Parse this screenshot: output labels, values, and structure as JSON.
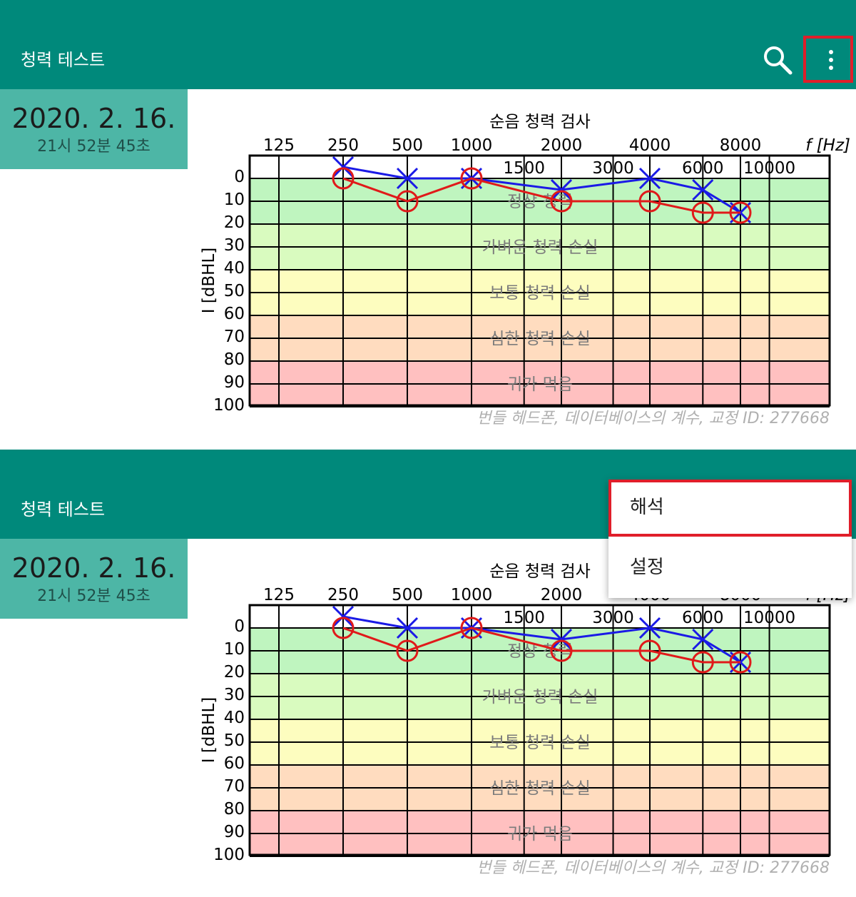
{
  "app": {
    "title": "청력 테스트"
  },
  "record": {
    "date": "2020. 2. 16.",
    "time": "21시 52분 45초"
  },
  "menu": {
    "items": [
      "해석",
      "설정"
    ]
  },
  "chart_data": {
    "type": "line",
    "title": "순음 청력 검사",
    "xlabel": "f [Hz]",
    "ylabel": "I [dBHL]",
    "x_scale": "log",
    "x_ticks_top": [
      125,
      250,
      500,
      1000,
      2000,
      4000,
      8000
    ],
    "x_ticks_mid": [
      1500,
      3000,
      6000,
      10000
    ],
    "y_ticks": [
      0,
      10,
      20,
      30,
      40,
      50,
      60,
      70,
      80,
      90,
      100
    ],
    "ylim": [
      -10,
      100
    ],
    "y_inverted": true,
    "zones": [
      {
        "label": "정상 청력",
        "range": [
          -10,
          20
        ],
        "color": "#bff5bf"
      },
      {
        "label": "가벼운 청력 손실",
        "range": [
          20,
          40
        ],
        "color": "#d9fbbf"
      },
      {
        "label": "보통 청력 손실",
        "range": [
          40,
          60
        ],
        "color": "#fdfdbf"
      },
      {
        "label": "심한 청력 손실",
        "range": [
          60,
          80
        ],
        "color": "#ffdcbf"
      },
      {
        "label": "귀가 먹음",
        "range": [
          80,
          100
        ],
        "color": "#ffc0c0"
      }
    ],
    "series": [
      {
        "marker": "x",
        "color": "#1a1ae6",
        "points": [
          [
            250,
            -5
          ],
          [
            500,
            0
          ],
          [
            1000,
            0
          ],
          [
            2000,
            5
          ],
          [
            4000,
            0
          ],
          [
            6000,
            5
          ],
          [
            8000,
            15
          ]
        ]
      },
      {
        "marker": "o",
        "color": "#e01a1a",
        "points": [
          [
            250,
            0
          ],
          [
            500,
            10
          ],
          [
            1000,
            0
          ],
          [
            2000,
            10
          ],
          [
            4000,
            10
          ],
          [
            6000,
            15
          ],
          [
            8000,
            15
          ]
        ]
      }
    ],
    "footnote": "번들 헤드폰, 데이터베이스의 계수, 교정 ID: 277668"
  }
}
